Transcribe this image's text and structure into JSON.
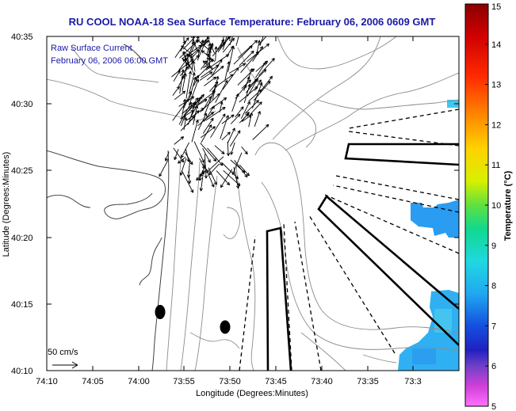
{
  "title": "RU COOL  NOAA-18  Sea Surface Temperature:  February 06, 2006 0609 GMT",
  "current_label": {
    "line1": "Raw Surface Current",
    "line2": "February 06, 2006 06:00 GMT"
  },
  "scale_label": "50 cm/s",
  "colors": {
    "title_text": "#1a1aa6",
    "coastline": "#404040",
    "bathymetry": "#8c8c8c",
    "warm_patch": "#3ec8f0",
    "cool_patch": "#2a9cf2"
  },
  "map": {
    "xlabel": "Longitude (Degrees:Minutes)",
    "ylabel": "Latitude (Degrees:Minutes)",
    "x_ticks": [
      "74:10",
      "74:05",
      "74:00",
      "73:55",
      "73:50",
      "73:45",
      "73:40",
      "73:35",
      "73:3"
    ],
    "y_ticks": [
      "40:35",
      "40:30",
      "40:25",
      "40:20",
      "40:15",
      "40:10"
    ]
  },
  "colorbar": {
    "label": "Temperature (°C)",
    "ticks": [
      "15",
      "14",
      "13",
      "12",
      "11",
      "10",
      "9",
      "8",
      "7",
      "6",
      "5"
    ],
    "min": 5,
    "max": 15
  },
  "icons": {
    "current_vectors": "arrow-field",
    "station_markers": "filled-ellipse"
  }
}
